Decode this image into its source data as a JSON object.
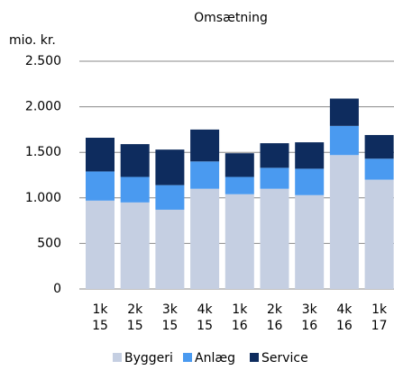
{
  "chart_data": {
    "type": "stacked-bar",
    "title": "Omsætning",
    "y_label": "mio. kr.",
    "categories": [
      [
        "1k",
        "15"
      ],
      [
        "2k",
        "15"
      ],
      [
        "3k",
        "15"
      ],
      [
        "4k",
        "15"
      ],
      [
        "1k",
        "16"
      ],
      [
        "2k",
        "16"
      ],
      [
        "3k",
        "16"
      ],
      [
        "4k",
        "16"
      ],
      [
        "1k",
        "17"
      ]
    ],
    "series": [
      {
        "name": "Byggeri",
        "color": "#c5cfe2",
        "values": [
          970,
          950,
          870,
          1100,
          1040,
          1100,
          1030,
          1470,
          1200
        ]
      },
      {
        "name": "Anlæg",
        "color": "#4a9af0",
        "values": [
          320,
          280,
          270,
          300,
          190,
          230,
          290,
          320,
          230
        ]
      },
      {
        "name": "Service",
        "color": "#0e2c5e",
        "values": [
          370,
          360,
          390,
          350,
          260,
          270,
          290,
          300,
          260
        ]
      }
    ],
    "ylim": [
      0,
      2500
    ],
    "yticks": [
      0,
      500,
      {
        "value": 1000,
        "label": "1.000"
      },
      {
        "value": 1500,
        "label": "1.500"
      },
      {
        "value": 2000,
        "label": "2.000"
      },
      {
        "value": 2500,
        "label": "2.500"
      }
    ],
    "grid": true,
    "legend": "bottom"
  }
}
